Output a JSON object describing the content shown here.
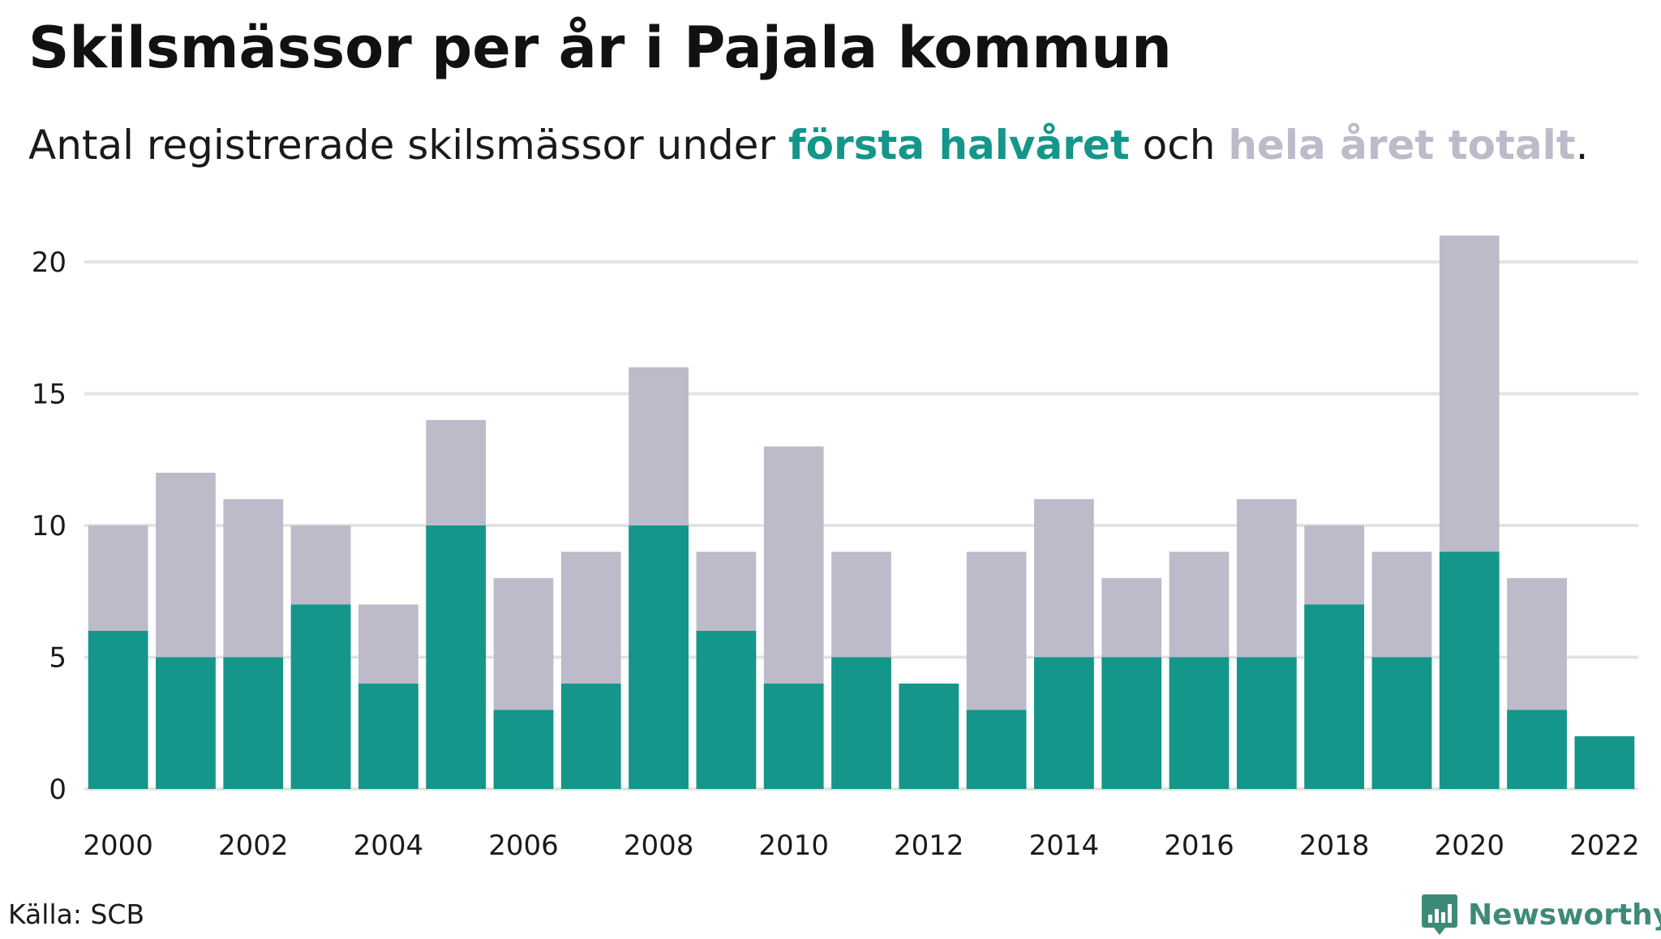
{
  "header": {
    "title": "Skilsmässor per år i Pajala kommun",
    "subtitle_prefix": "Antal registrerade skilsmässor under ",
    "subtitle_first": "första halvåret",
    "subtitle_mid": " och ",
    "subtitle_total": "hela året totalt",
    "subtitle_suffix": "."
  },
  "footer": {
    "source": "Källa: SCB",
    "brand": "Newsworthy",
    "brand_icon": "bar-chart-badge-icon"
  },
  "colors": {
    "first_half": "#14968a",
    "total": "#bdbbc9",
    "grid": "#e3e3e3",
    "brand": "#3e8a78"
  },
  "chart_data": {
    "type": "bar",
    "stacked_overlay": true,
    "categories": [
      2000,
      2001,
      2002,
      2003,
      2004,
      2005,
      2006,
      2007,
      2008,
      2009,
      2010,
      2011,
      2012,
      2013,
      2014,
      2015,
      2016,
      2017,
      2018,
      2019,
      2020,
      2021,
      2022
    ],
    "x_tick_labels": [
      "2000",
      "2002",
      "2004",
      "2006",
      "2008",
      "2010",
      "2012",
      "2014",
      "2016",
      "2018",
      "2020",
      "2022"
    ],
    "series": [
      {
        "name": "hela året totalt",
        "color": "#bdbbc9",
        "values": [
          10,
          12,
          11,
          10,
          7,
          14,
          8,
          9,
          16,
          9,
          13,
          9,
          4,
          9,
          11,
          8,
          9,
          11,
          10,
          9,
          21,
          8,
          2
        ]
      },
      {
        "name": "första halvåret",
        "color": "#14968a",
        "values": [
          6,
          5,
          5,
          7,
          4,
          10,
          3,
          4,
          10,
          6,
          4,
          5,
          4,
          3,
          5,
          5,
          5,
          5,
          7,
          5,
          9,
          3,
          2
        ]
      }
    ],
    "y_ticks": [
      0,
      5,
      10,
      15,
      20
    ],
    "ylim": [
      0,
      21
    ],
    "grid": true,
    "title": "Skilsmässor per år i Pajala kommun",
    "xlabel": "",
    "ylabel": ""
  }
}
